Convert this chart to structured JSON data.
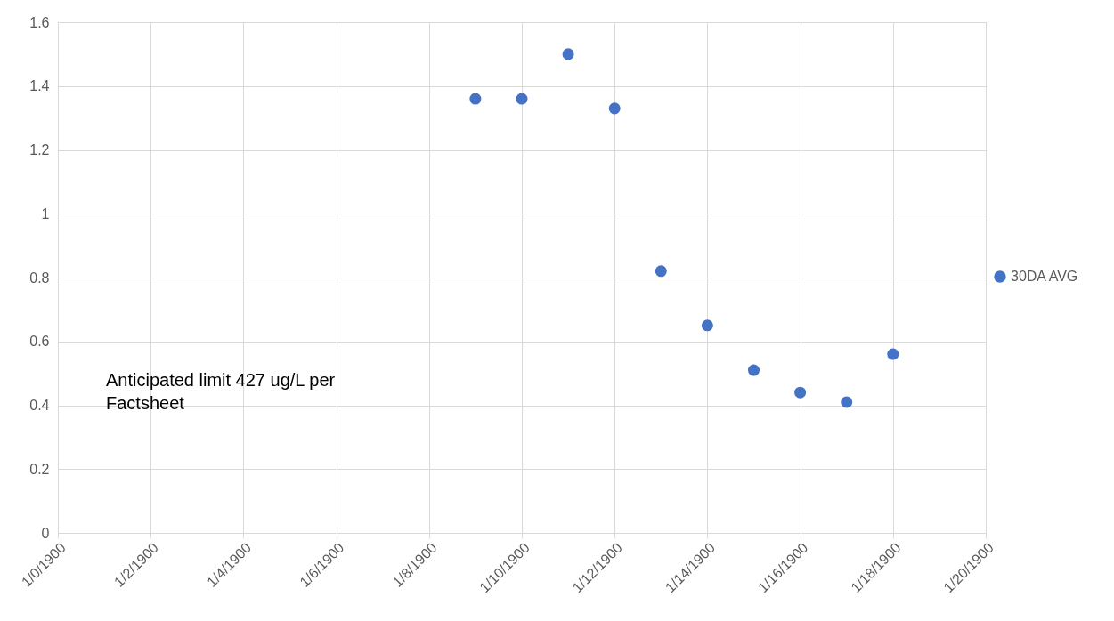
{
  "chart_data": {
    "type": "scatter",
    "categories": [
      "1/0/1900",
      null,
      "1/2/1900",
      null,
      "1/4/1900",
      null,
      "1/6/1900",
      null,
      "1/8/1900",
      null,
      "1/10/1900",
      null,
      "1/12/1900",
      null,
      "1/14/1900",
      null,
      "1/16/1900",
      null,
      "1/18/1900",
      null,
      "1/20/1900"
    ],
    "series": [
      {
        "name": "30DA AVG",
        "color": "#4472c4",
        "values": [
          null,
          null,
          null,
          null,
          null,
          null,
          null,
          null,
          null,
          1.36,
          1.36,
          1.5,
          1.33,
          0.82,
          0.65,
          0.51,
          0.44,
          0.41,
          0.56,
          null,
          null
        ]
      }
    ],
    "ylim": [
      0,
      1.6
    ],
    "yticks": [
      0,
      0.2,
      0.4,
      0.6,
      0.8,
      1,
      1.2,
      1.4,
      1.6
    ],
    "annotations": [
      "Anticipated  limit 427 ug/L per Factsheet"
    ],
    "grid": true,
    "legend": "right",
    "marker": "circle"
  }
}
